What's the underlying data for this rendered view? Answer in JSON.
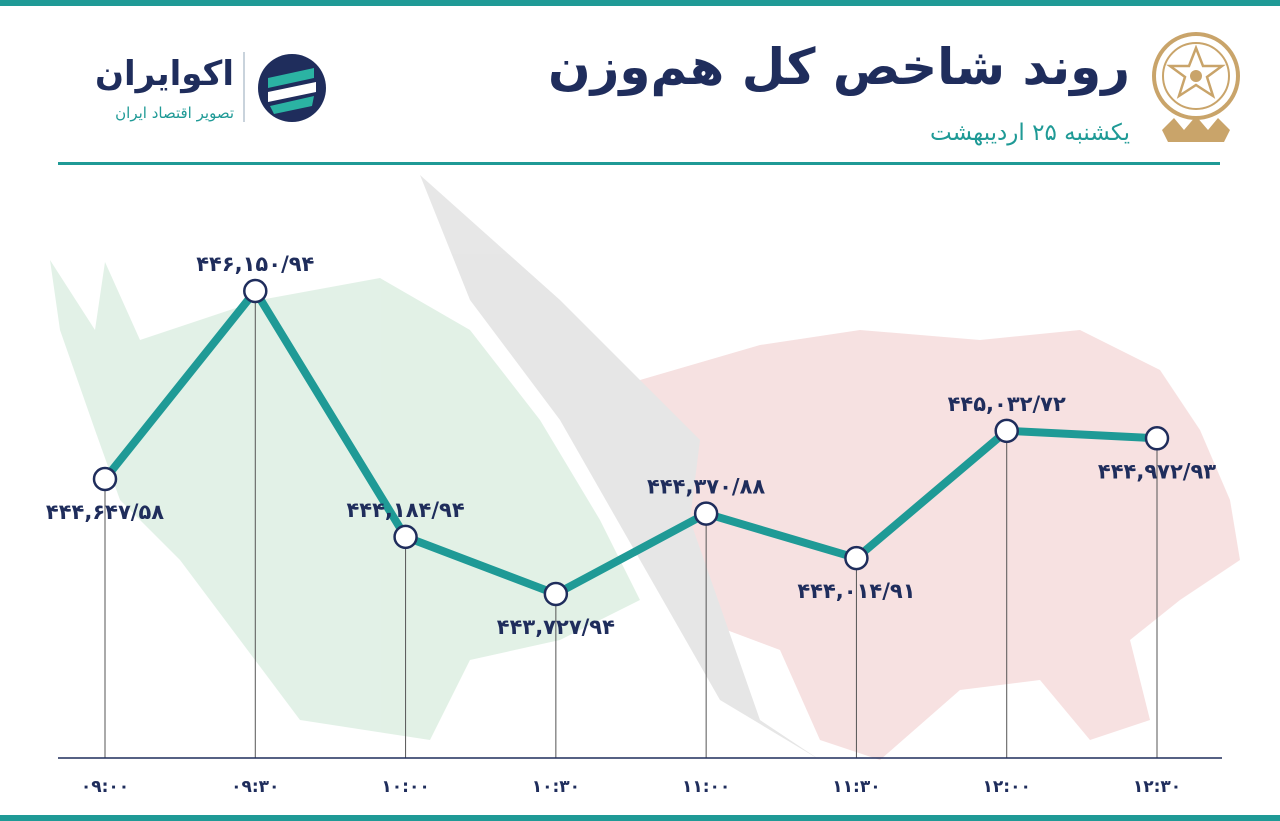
{
  "header": {
    "title": "روند شاخص کل هم‌وزن",
    "subtitle": "یکشنبه ۲۵ اردیبهشت"
  },
  "brand": {
    "name": "اکوایران",
    "tagline": "تصویر اقتصاد ایران",
    "logo_icon": "ecoiran-logo-icon",
    "seal_icon": "stock-exchange-seal-icon"
  },
  "colors": {
    "accent": "#1f9a96",
    "text": "#1f2d5c",
    "bull_bg": "#dff0e4",
    "bear_bg": "#f6dede",
    "seal": "#c9a46a"
  },
  "chart_data": {
    "type": "line",
    "x": [
      "09:00",
      "09:30",
      "10:00",
      "10:30",
      "11:00",
      "11:30",
      "12:00",
      "12:30"
    ],
    "x_tick_labels": [
      "۰۹:۰۰",
      "۰۹:۳۰",
      "۱۰:۰۰",
      "۱۰:۳۰",
      "۱۱:۰۰",
      "۱۱:۳۰",
      "۱۲:۰۰",
      "۱۲:۳۰"
    ],
    "values": [
      444647.58,
      446150.94,
      444184.94,
      443727.94,
      444370.88,
      444014.91,
      445032.72,
      444972.93
    ],
    "data_labels": [
      "۴۴۴,۶۴۷/۵۸",
      "۴۴۶,۱۵۰/۹۴",
      "۴۴۴,۱۸۴/۹۴",
      "۴۴۳,۷۲۷/۹۴",
      "۴۴۴,۳۷۰/۸۸",
      "۴۴۴,۰۱۴/۹۱",
      "۴۴۵,۰۳۲/۷۲",
      "۴۴۴,۹۷۲/۹۳"
    ],
    "title": "روند شاخص کل هم‌وزن",
    "xlabel": "",
    "ylabel": "",
    "grid": false
  }
}
